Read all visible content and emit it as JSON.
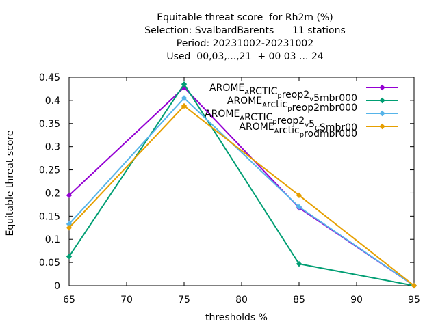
{
  "chart_data": {
    "type": "line",
    "title_lines": [
      "Equitable threat score  for Rh2m (%)",
      "Selection: SvalbardBarents      11 stations",
      "Period: 20231002-20231002",
      "Used  00,03,...,21  + 00 03 ... 24"
    ],
    "xlabel": "thresholds %",
    "ylabel": "Equitable threat score",
    "xlim": [
      65,
      95
    ],
    "ylim": [
      0,
      0.45
    ],
    "x_ticks": [
      65,
      70,
      75,
      80,
      85,
      90,
      95
    ],
    "y_ticks": [
      0,
      0.05,
      0.1,
      0.15,
      0.2,
      0.25,
      0.3,
      0.35,
      0.4,
      0.45
    ],
    "x_tick_labels": [
      "65",
      "70",
      "75",
      "80",
      "85",
      "90",
      "95"
    ],
    "y_tick_labels": [
      "0",
      "0.05",
      "0.1",
      "0.15",
      "0.2",
      "0.25",
      "0.3",
      "0.35",
      "0.4",
      "0.45"
    ],
    "legend_placement": "top-right",
    "series": [
      {
        "name": "AROME_ARCTIC_preop2_v5mbr000",
        "legend_parts": [
          [
            "AROME",
            ""
          ],
          [
            "A",
            "sub"
          ],
          [
            "RCTIC",
            ""
          ],
          [
            "p",
            "sub"
          ],
          [
            "reop2",
            ""
          ],
          [
            "v",
            "sub"
          ],
          [
            "5mbr000",
            ""
          ]
        ],
        "color": "#9400d3",
        "x": [
          65,
          75,
          85,
          95
        ],
        "y": [
          0.195,
          0.428,
          0.168,
          0.0
        ]
      },
      {
        "name": "AROME_Arctic_preop2mbr000",
        "legend_parts": [
          [
            "AROME",
            ""
          ],
          [
            "A",
            "sub"
          ],
          [
            "rctic",
            ""
          ],
          [
            "p",
            "sub"
          ],
          [
            "reop2mbr000",
            ""
          ]
        ],
        "color": "#009e73",
        "x": [
          65,
          75,
          85,
          95
        ],
        "y": [
          0.063,
          0.435,
          0.047,
          0.0
        ]
      },
      {
        "name": "AROME_ARCTIC_preop2_v5_CSmbr00",
        "legend_parts": [
          [
            "AROME",
            ""
          ],
          [
            "A",
            "sub"
          ],
          [
            "RCTIC",
            ""
          ],
          [
            "p",
            "sub"
          ],
          [
            "reop2",
            ""
          ],
          [
            "v",
            "sub"
          ],
          [
            "5",
            ""
          ],
          [
            "C",
            "sub"
          ],
          [
            "Smbr00",
            ""
          ]
        ],
        "color": "#56b4e9",
        "x": [
          65,
          75,
          85,
          95
        ],
        "y": [
          0.133,
          0.405,
          0.17,
          0.0
        ]
      },
      {
        "name": "AROME_Arctic_prodmbr000",
        "legend_parts": [
          [
            "AROME",
            ""
          ],
          [
            "A",
            "sub"
          ],
          [
            "rctic",
            ""
          ],
          [
            "p",
            "sub"
          ],
          [
            "rodmbr000",
            ""
          ]
        ],
        "color": "#e69f00",
        "x": [
          65,
          75,
          85,
          95
        ],
        "y": [
          0.125,
          0.388,
          0.195,
          0.0
        ]
      }
    ]
  }
}
